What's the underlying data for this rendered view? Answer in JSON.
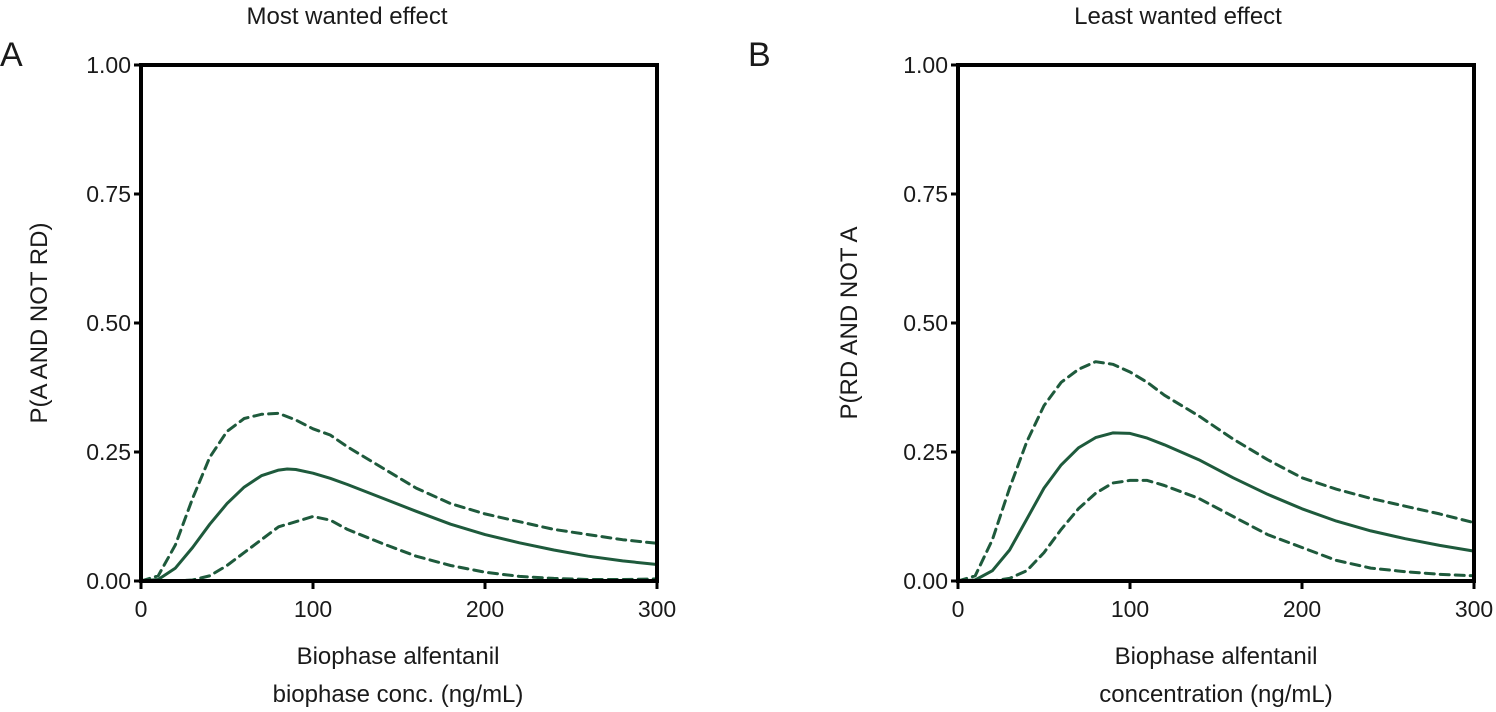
{
  "colors": {
    "curve": "#1e5a3c",
    "axis": "#000000",
    "text": "#1a1a1a"
  },
  "chart_data": [
    {
      "type": "line",
      "panel_label": "A",
      "title": "Most wanted effect",
      "ylabel": "P(A AND NOT RD)",
      "xlabel_line1": "Biophase alfentanil",
      "xlabel_line2": "biophase conc. (ng/mL)",
      "xlim": [
        0,
        300
      ],
      "ylim": [
        0,
        1
      ],
      "x_ticks": [
        "0",
        "100",
        "200",
        "300"
      ],
      "y_ticks": [
        "0.00",
        "0.25",
        "0.50",
        "0.75",
        "1.00"
      ],
      "grid": false,
      "series": [
        {
          "style": "solid",
          "x": [
            0,
            10,
            20,
            30,
            40,
            50,
            60,
            70,
            80,
            85,
            90,
            100,
            110,
            120,
            140,
            160,
            180,
            200,
            220,
            240,
            260,
            280,
            300
          ],
          "y": [
            0.0,
            0.003,
            0.025,
            0.065,
            0.11,
            0.15,
            0.182,
            0.204,
            0.215,
            0.217,
            0.216,
            0.209,
            0.199,
            0.187,
            0.161,
            0.135,
            0.11,
            0.09,
            0.074,
            0.06,
            0.048,
            0.039,
            0.032
          ]
        },
        {
          "style": "dashed",
          "x": [
            0,
            10,
            20,
            30,
            40,
            50,
            60,
            70,
            80,
            90,
            100,
            110,
            120,
            140,
            160,
            180,
            200,
            220,
            240,
            260,
            280,
            300
          ],
          "y": [
            0.0,
            0.01,
            0.07,
            0.16,
            0.24,
            0.29,
            0.315,
            0.323,
            0.325,
            0.312,
            0.295,
            0.283,
            0.26,
            0.22,
            0.18,
            0.15,
            0.13,
            0.115,
            0.1,
            0.09,
            0.08,
            0.073
          ]
        },
        {
          "style": "dashed",
          "x": [
            0,
            20,
            30,
            40,
            50,
            60,
            70,
            80,
            90,
            100,
            110,
            120,
            140,
            160,
            180,
            200,
            220,
            240,
            260,
            280,
            300
          ],
          "y": [
            0.0,
            0.0,
            0.002,
            0.01,
            0.03,
            0.055,
            0.08,
            0.105,
            0.115,
            0.125,
            0.118,
            0.1,
            0.073,
            0.048,
            0.03,
            0.017,
            0.009,
            0.005,
            0.003,
            0.003,
            0.004
          ]
        }
      ]
    },
    {
      "type": "line",
      "panel_label": "B",
      "title": "Least wanted effect",
      "ylabel": "P(RD AND NOT A",
      "xlabel_line1": "Biophase alfentanil",
      "xlabel_line2": "concentration (ng/mL)",
      "xlim": [
        0,
        300
      ],
      "ylim": [
        0,
        1
      ],
      "x_ticks": [
        "0",
        "100",
        "200",
        "300"
      ],
      "y_ticks": [
        "0.00",
        "0.25",
        "0.50",
        "0.75",
        "1.00"
      ],
      "grid": false,
      "series": [
        {
          "style": "solid",
          "x": [
            0,
            10,
            20,
            30,
            40,
            50,
            60,
            70,
            80,
            90,
            100,
            110,
            120,
            140,
            160,
            180,
            200,
            220,
            240,
            260,
            280,
            300
          ],
          "y": [
            0.0,
            0.002,
            0.02,
            0.06,
            0.12,
            0.18,
            0.225,
            0.258,
            0.278,
            0.287,
            0.286,
            0.277,
            0.264,
            0.235,
            0.2,
            0.168,
            0.14,
            0.116,
            0.097,
            0.082,
            0.069,
            0.058
          ]
        },
        {
          "style": "dashed",
          "x": [
            0,
            10,
            20,
            30,
            40,
            50,
            60,
            70,
            80,
            90,
            100,
            110,
            120,
            140,
            160,
            180,
            200,
            220,
            240,
            260,
            280,
            300
          ],
          "y": [
            0.0,
            0.01,
            0.08,
            0.18,
            0.27,
            0.34,
            0.385,
            0.41,
            0.425,
            0.42,
            0.405,
            0.385,
            0.36,
            0.32,
            0.275,
            0.235,
            0.2,
            0.178,
            0.16,
            0.145,
            0.13,
            0.113
          ]
        },
        {
          "style": "dashed",
          "x": [
            0,
            20,
            30,
            40,
            50,
            60,
            70,
            80,
            90,
            100,
            110,
            120,
            140,
            160,
            180,
            200,
            220,
            240,
            260,
            280,
            300
          ],
          "y": [
            0.0,
            0.0,
            0.005,
            0.02,
            0.055,
            0.1,
            0.14,
            0.17,
            0.19,
            0.195,
            0.195,
            0.185,
            0.16,
            0.125,
            0.09,
            0.065,
            0.04,
            0.025,
            0.018,
            0.013,
            0.01
          ]
        }
      ]
    }
  ]
}
